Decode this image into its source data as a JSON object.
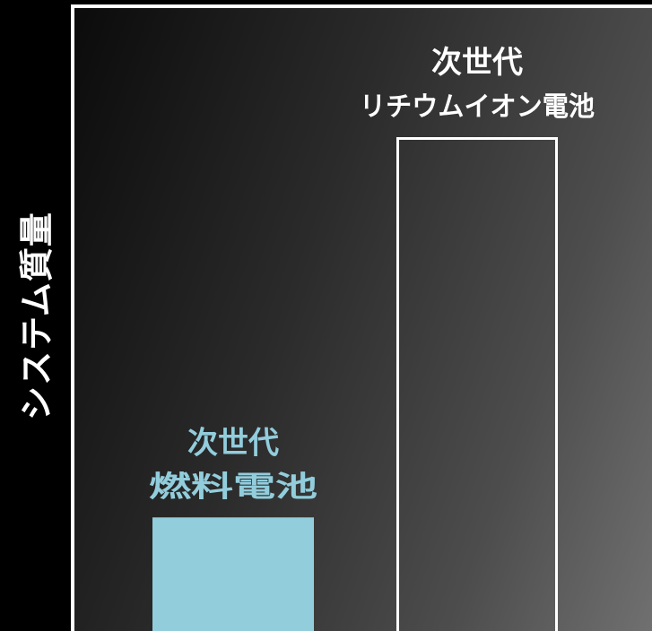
{
  "chart_data": {
    "type": "bar",
    "title": "",
    "xlabel": "",
    "ylabel": "システム質量",
    "ylim": [
      0,
      100
    ],
    "grid": false,
    "categories": [
      [
        "次世代",
        "燃料電池"
      ],
      [
        "次世代",
        "リチウムイオン電池"
      ]
    ],
    "values": [
      23,
      100
    ],
    "colors": [
      "#92cddc",
      "none"
    ],
    "label_colors": [
      "#92cddc",
      "#ffffff"
    ],
    "outline_color": "#ffffff"
  }
}
